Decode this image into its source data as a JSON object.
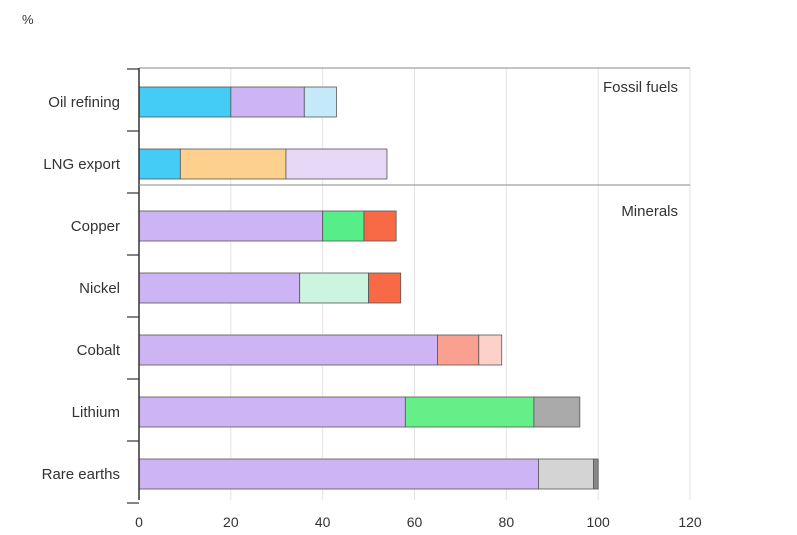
{
  "chart_data": {
    "type": "bar",
    "orientation": "horizontal",
    "stacked": true,
    "unit_label": "%",
    "xlim": [
      0,
      120
    ],
    "x_ticks": [
      0,
      20,
      40,
      60,
      80,
      100,
      120
    ],
    "grid": true,
    "groups": [
      {
        "label": "Fossil fuels",
        "categories": [
          "Oil refining",
          "LNG export"
        ]
      },
      {
        "label": "Minerals",
        "categories": [
          "Copper",
          "Nickel",
          "Cobalt",
          "Lithium",
          "Rare earths"
        ]
      }
    ],
    "bars": [
      {
        "category": "Oil refining",
        "segments": [
          {
            "value": 20,
            "color": "#44CCF6"
          },
          {
            "value": 16,
            "color": "#CDB4F5"
          },
          {
            "value": 7,
            "color": "#C4EAF9"
          }
        ]
      },
      {
        "category": "LNG export",
        "segments": [
          {
            "value": 9,
            "color": "#44CCF6"
          },
          {
            "value": 23,
            "color": "#FDD08E"
          },
          {
            "value": 22,
            "color": "#E8D8F8"
          }
        ]
      },
      {
        "category": "Copper",
        "segments": [
          {
            "value": 40,
            "color": "#CDB4F5"
          },
          {
            "value": 9,
            "color": "#55EE88"
          },
          {
            "value": 7,
            "color": "#F86A45"
          }
        ]
      },
      {
        "category": "Nickel",
        "segments": [
          {
            "value": 35,
            "color": "#CDB4F5"
          },
          {
            "value": 15,
            "color": "#CCF5E0"
          },
          {
            "value": 7,
            "color": "#F86A45"
          }
        ]
      },
      {
        "category": "Cobalt",
        "segments": [
          {
            "value": 65,
            "color": "#CDB4F5"
          },
          {
            "value": 9,
            "color": "#F9A090"
          },
          {
            "value": 5,
            "color": "#FDD0C8"
          }
        ]
      },
      {
        "category": "Lithium",
        "segments": [
          {
            "value": 58,
            "color": "#CDB4F5"
          },
          {
            "value": 28,
            "color": "#66EE88"
          },
          {
            "value": 10,
            "color": "#AAAAAA"
          }
        ]
      },
      {
        "category": "Rare earths",
        "segments": [
          {
            "value": 87,
            "color": "#CDB4F5"
          },
          {
            "value": 12,
            "color": "#D4D4D4"
          },
          {
            "value": 1,
            "color": "#888888"
          }
        ]
      }
    ]
  }
}
